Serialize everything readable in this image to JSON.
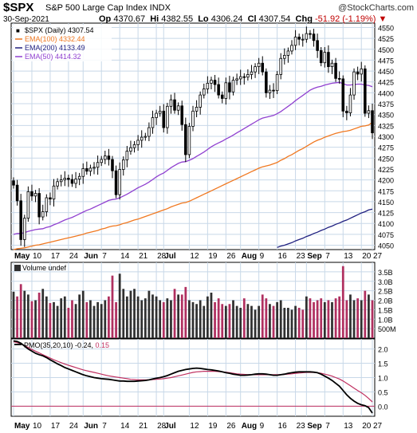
{
  "header": {
    "symbol": "$SPX",
    "description": "S&P 500 Large Cap Index  INDX",
    "credit": "@StockCharts.com",
    "date": "30-Sep-2021",
    "open_label": "Op",
    "open": "4370.67",
    "high_label": "Hi",
    "high": "4382.55",
    "low_label": "Lo",
    "low": "4306.24",
    "close_label": "Cl",
    "close": "4307.54",
    "change_label": "Chg",
    "change": "-51.92 (-1.19%)",
    "down_marker": "▼"
  },
  "colors": {
    "up": "#000000",
    "down": "#000000",
    "ema100": "#f07820",
    "ema200": "#202080",
    "ema50": "#9040d0",
    "vol_up": "#303030",
    "vol_down": "#b03060",
    "pmo": "#000000",
    "pmo_signal": "#c03060",
    "grid": "#c8d8e8",
    "panel_bg": "#ffffff"
  },
  "chart_data": [
    {
      "type": "candlestick",
      "title": "$SPX (Daily) 4307.54",
      "legend": [
        {
          "name": "$SPX (Daily) 4307.54",
          "color": "#000000"
        },
        {
          "name": "EMA(100) 4332.44",
          "color": "#f07820"
        },
        {
          "name": "EMA(200) 4133.49",
          "color": "#202080"
        },
        {
          "name": "EMA(50) 4414.32",
          "color": "#9040d0"
        }
      ],
      "ylim": [
        4040,
        4560
      ],
      "y_ticks": [
        4050,
        4075,
        4100,
        4125,
        4150,
        4175,
        4200,
        4225,
        4250,
        4275,
        4300,
        4325,
        4350,
        4375,
        4400,
        4425,
        4450,
        4475,
        4500,
        4525,
        4550
      ],
      "x_labels": [
        "May",
        "10",
        "17",
        "24",
        "Jun",
        "7",
        "14",
        "21",
        "28",
        "Jul",
        "12",
        "19",
        "26",
        "Aug",
        "9",
        "16",
        "23",
        "Sep",
        "7",
        "13",
        "20",
        "27"
      ],
      "close": [
        4188,
        4152,
        4063,
        4112,
        4173,
        4163,
        4169,
        4115,
        4127,
        4159,
        4156,
        4186,
        4196,
        4200,
        4204,
        4201,
        4192,
        4202,
        4208,
        4226,
        4220,
        4227,
        4229,
        4240,
        4247,
        4255,
        4247,
        4221,
        4166,
        4224,
        4246,
        4266,
        4274,
        4281,
        4291,
        4298,
        4300,
        4320,
        4343,
        4353,
        4358,
        4320,
        4369,
        4384,
        4360,
        4370,
        4327,
        4258,
        4323,
        4358,
        4367,
        4395,
        4409,
        4422,
        4429,
        4419,
        4395,
        4387,
        4423,
        4402,
        4429,
        4432,
        4437,
        4436,
        4442,
        4448,
        4460,
        4468,
        4448,
        4400,
        4406,
        4405,
        4442,
        4479,
        4486,
        4496,
        4509,
        4528,
        4523,
        4523,
        4536,
        4535,
        4520,
        4497,
        4469,
        4493,
        4460,
        4468,
        4433,
        4432,
        4358,
        4354,
        4395,
        4448,
        4443,
        4455,
        4353,
        4359,
        4308
      ],
      "ema100": [
        4040,
        4042,
        4043,
        4044,
        4046,
        4048,
        4050,
        4051,
        4053,
        4055,
        4057,
        4059,
        4061,
        4063,
        4065,
        4067,
        4069,
        4071,
        4073,
        4075,
        4078,
        4080,
        4082,
        4084,
        4087,
        4089,
        4092,
        4094,
        4095,
        4097,
        4100,
        4102,
        4105,
        4108,
        4110,
        4113,
        4116,
        4119,
        4122,
        4125,
        4128,
        4131,
        4134,
        4138,
        4141,
        4144,
        4147,
        4148,
        4151,
        4155,
        4159,
        4163,
        4167,
        4171,
        4175,
        4179,
        4183,
        4187,
        4191,
        4195,
        4199,
        4203,
        4207,
        4211,
        4215,
        4219,
        4223,
        4227,
        4230,
        4232,
        4234,
        4237,
        4240,
        4245,
        4249,
        4254,
        4258,
        4263,
        4268,
        4272,
        4277,
        4282,
        4287,
        4291,
        4294,
        4298,
        4301,
        4304,
        4307,
        4309,
        4311,
        4312,
        4314,
        4317,
        4320,
        4323,
        4324,
        4326,
        4332
      ],
      "ema200": [
        4045,
        4048,
        4050,
        4053,
        4056,
        4060,
        4063,
        4066,
        4070,
        4073,
        4077,
        4080,
        4084,
        4087,
        4091,
        4094,
        4098,
        4101,
        4105,
        4108,
        4112,
        4116,
        4120,
        4124,
        4127,
        4131,
        4133
      ],
      "ema50": [
        4075,
        4077,
        4077,
        4079,
        4082,
        4084,
        4086,
        4087,
        4088,
        4091,
        4093,
        4097,
        4100,
        4104,
        4108,
        4111,
        4114,
        4118,
        4122,
        4126,
        4130,
        4133,
        4137,
        4141,
        4145,
        4149,
        4153,
        4155,
        4156,
        4159,
        4163,
        4167,
        4172,
        4177,
        4182,
        4186,
        4190,
        4195,
        4201,
        4207,
        4212,
        4216,
        4222,
        4228,
        4233,
        4238,
        4241,
        4242,
        4245,
        4249,
        4254,
        4259,
        4264,
        4270,
        4276,
        4281,
        4285,
        4289,
        4294,
        4298,
        4303,
        4308,
        4313,
        4318,
        4323,
        4328,
        4333,
        4338,
        4342,
        4344,
        4346,
        4348,
        4352,
        4357,
        4363,
        4369,
        4375,
        4382,
        4388,
        4394,
        4400,
        4406,
        4410,
        4413,
        4415,
        4418,
        4420,
        4422,
        4423,
        4424,
        4421,
        4418,
        4418,
        4419,
        4420,
        4420,
        4418,
        4417,
        4414
      ]
    },
    {
      "type": "bar",
      "title": "Volume undef",
      "ylim": [
        0,
        4000000000
      ],
      "y_ticks": [
        {
          "v": 500000000,
          "label": "500M"
        },
        {
          "v": 1000000000,
          "label": "1.0B"
        },
        {
          "v": 1500000000,
          "label": "1.5B"
        },
        {
          "v": 2000000000,
          "label": "2.0B"
        },
        {
          "v": 2500000000,
          "label": "2.5B"
        },
        {
          "v": 3000000000,
          "label": "3.0B"
        },
        {
          "v": 3500000000,
          "label": "3.5B"
        }
      ],
      "values": [
        2.45,
        2.2,
        2.85,
        2.5,
        2.3,
        1.95,
        2.0,
        2.4,
        2.6,
        2.2,
        1.85,
        1.9,
        1.7,
        2.1,
        2.2,
        1.6,
        2.0,
        1.8,
        2.3,
        2.5,
        1.9,
        2.0,
        1.7,
        1.9,
        1.8,
        2.0,
        2.2,
        3.3,
        1.9,
        3.4,
        2.6,
        2.2,
        2.5,
        2.6,
        2.2,
        2.0,
        2.1,
        2.5,
        2.3,
        2.2,
        2.0,
        1.9,
        2.1,
        2.0,
        2.6,
        2.3,
        2.3,
        2.7,
        2.0,
        1.9,
        1.8,
        2.0,
        1.7,
        2.2,
        2.4,
        1.9,
        2.1,
        1.8,
        1.7,
        1.8,
        2.0,
        1.7,
        1.6,
        2.1,
        1.8,
        1.7,
        1.5,
        1.7,
        2.3,
        2.1,
        1.8,
        1.7,
        1.9,
        2.0,
        1.6,
        1.6,
        1.5,
        1.7,
        1.6,
        1.5,
        2.2,
        2.1,
        1.9,
        2.0,
        2.1,
        1.9,
        2.0,
        1.9,
        2.1,
        2.2,
        3.8,
        2.0,
        2.3,
        2.0,
        2.1,
        2.0,
        2.5,
        2.3,
        2.0
      ],
      "up_down": [
        1,
        0,
        0,
        1,
        1,
        0,
        1,
        0,
        1,
        1,
        0,
        1,
        1,
        1,
        1,
        0,
        0,
        1,
        1,
        1,
        0,
        1,
        1,
        1,
        1,
        1,
        0,
        0,
        0,
        1,
        1,
        1,
        1,
        1,
        1,
        1,
        1,
        1,
        1,
        1,
        1,
        0,
        1,
        1,
        0,
        1,
        0,
        0,
        1,
        1,
        1,
        1,
        1,
        1,
        1,
        0,
        0,
        0,
        1,
        0,
        1,
        1,
        1,
        0,
        1,
        1,
        1,
        1,
        0,
        0,
        1,
        0,
        1,
        1,
        1,
        1,
        1,
        1,
        0,
        0,
        1,
        0,
        0,
        0,
        0,
        1,
        0,
        1,
        0,
        0,
        0,
        0,
        1,
        1,
        0,
        1,
        0,
        1,
        0
      ]
    },
    {
      "type": "line",
      "title": "PMO(35,20,10) -0.24, 0.15",
      "series": [
        {
          "name": "PMO(35,20,10)",
          "color": "#000000"
        },
        {
          "name": "Signal",
          "color": "#c03060"
        }
      ],
      "ylim": [
        -0.35,
        2.35
      ],
      "y_ticks": [
        0.0,
        0.5,
        1.0,
        1.5,
        2.0
      ],
      "pmo": [
        2.28,
        2.26,
        2.2,
        2.1,
        2.0,
        1.92,
        1.85,
        1.8,
        1.76,
        1.7,
        1.62,
        1.55,
        1.48,
        1.42,
        1.35,
        1.3,
        1.25,
        1.2,
        1.15,
        1.1,
        1.06,
        1.03,
        1.0,
        0.98,
        0.96,
        0.95,
        0.94,
        0.92,
        0.9,
        0.88,
        0.88,
        0.87,
        0.87,
        0.87,
        0.88,
        0.89,
        0.9,
        0.92,
        0.95,
        0.98,
        1.0,
        1.03,
        1.07,
        1.12,
        1.17,
        1.22,
        1.25,
        1.28,
        1.3,
        1.32,
        1.33,
        1.32,
        1.3,
        1.28,
        1.27,
        1.25,
        1.23,
        1.2,
        1.17,
        1.15,
        1.12,
        1.1,
        1.08,
        1.08,
        1.09,
        1.1,
        1.12,
        1.13,
        1.13,
        1.12,
        1.1,
        1.08,
        1.08,
        1.1,
        1.12,
        1.15,
        1.17,
        1.19,
        1.2,
        1.2,
        1.2,
        1.2,
        1.19,
        1.17,
        1.12,
        1.05,
        0.98,
        0.9,
        0.8,
        0.7,
        0.55,
        0.4,
        0.28,
        0.18,
        0.1,
        0.05,
        0.02,
        -0.05,
        -0.24
      ],
      "signal": [
        2.25,
        2.22,
        2.18,
        2.12,
        2.05,
        1.98,
        1.92,
        1.86,
        1.8,
        1.74,
        1.68,
        1.62,
        1.57,
        1.52,
        1.47,
        1.43,
        1.39,
        1.35,
        1.31,
        1.27,
        1.24,
        1.21,
        1.18,
        1.15,
        1.12,
        1.09,
        1.06,
        1.04,
        1.02,
        1.0,
        0.98,
        0.96,
        0.94,
        0.93,
        0.92,
        0.92,
        0.92,
        0.92,
        0.93,
        0.94,
        0.95,
        0.96,
        0.98,
        1.0,
        1.03,
        1.06,
        1.09,
        1.12,
        1.15,
        1.18,
        1.2,
        1.21,
        1.22,
        1.22,
        1.22,
        1.22,
        1.21,
        1.2,
        1.19,
        1.17,
        1.15,
        1.13,
        1.12,
        1.11,
        1.1,
        1.1,
        1.1,
        1.1,
        1.1,
        1.1,
        1.1,
        1.1,
        1.1,
        1.1,
        1.11,
        1.12,
        1.13,
        1.15,
        1.16,
        1.17,
        1.18,
        1.18,
        1.18,
        1.17,
        1.15,
        1.12,
        1.09,
        1.05,
        1.0,
        0.95,
        0.88,
        0.8,
        0.72,
        0.63,
        0.55,
        0.47,
        0.38,
        0.27,
        0.15
      ]
    }
  ]
}
